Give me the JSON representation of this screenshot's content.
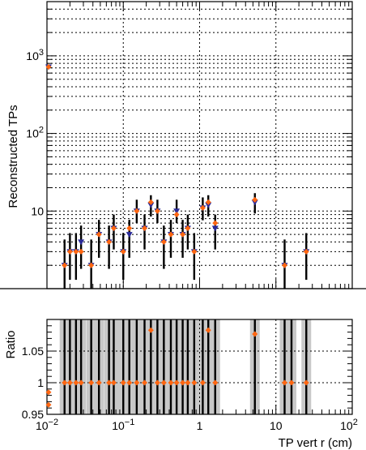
{
  "chart_data": [
    {
      "type": "scatter",
      "title": "",
      "xlabel": "TP vert r (cm)",
      "ylabel": "Reconstructed TPs",
      "x_scale": "log",
      "y_scale": "log",
      "xlim": [
        0.01,
        100
      ],
      "ylim": [
        1,
        5000
      ],
      "grid": true,
      "y_tick_labels": [
        "10",
        "10²",
        "10³"
      ],
      "series": [
        {
          "name": "",
          "color": "#2b2b99",
          "marker": "triangle-down",
          "points": [
            {
              "x": 0.0105,
              "y": 720,
              "lo": 690,
              "hi": 750
            },
            {
              "x": 0.017,
              "y": 2,
              "lo": 0.9,
              "hi": 4.3
            },
            {
              "x": 0.02,
              "y": 3,
              "lo": 1.3,
              "hi": 5.2
            },
            {
              "x": 0.024,
              "y": 3,
              "lo": 1.3,
              "hi": 5.2
            },
            {
              "x": 0.028,
              "y": 4,
              "lo": 1.8,
              "hi": 6.5
            },
            {
              "x": 0.038,
              "y": 2,
              "lo": 0.9,
              "hi": 4.3
            },
            {
              "x": 0.048,
              "y": 5,
              "lo": 2.5,
              "hi": 7.7
            },
            {
              "x": 0.065,
              "y": 4,
              "lo": 1.8,
              "hi": 6.5
            },
            {
              "x": 0.075,
              "y": 6,
              "lo": 3.2,
              "hi": 9.0
            },
            {
              "x": 0.1,
              "y": 3,
              "lo": 1.3,
              "hi": 5.2
            },
            {
              "x": 0.12,
              "y": 5,
              "lo": 2.5,
              "hi": 7.7
            },
            {
              "x": 0.15,
              "y": 10,
              "lo": 7.0,
              "hi": 14.0
            },
            {
              "x": 0.19,
              "y": 6,
              "lo": 3.2,
              "hi": 9.0
            },
            {
              "x": 0.23,
              "y": 12,
              "lo": 8.5,
              "hi": 16.0
            },
            {
              "x": 0.28,
              "y": 10,
              "lo": 7.0,
              "hi": 14.0
            },
            {
              "x": 0.34,
              "y": 4,
              "lo": 1.8,
              "hi": 6.5
            },
            {
              "x": 0.42,
              "y": 5,
              "lo": 2.5,
              "hi": 7.7
            },
            {
              "x": 0.5,
              "y": 10,
              "lo": 7.0,
              "hi": 14.0
            },
            {
              "x": 0.6,
              "y": 5,
              "lo": 2.5,
              "hi": 7.7
            },
            {
              "x": 0.7,
              "y": 6,
              "lo": 3.2,
              "hi": 9.0
            },
            {
              "x": 0.85,
              "y": 3,
              "lo": 1.3,
              "hi": 5.2
            },
            {
              "x": 1.1,
              "y": 11,
              "lo": 7.6,
              "hi": 15.0
            },
            {
              "x": 1.3,
              "y": 12,
              "lo": 8.5,
              "hi": 16.0
            },
            {
              "x": 1.6,
              "y": 6,
              "lo": 3.2,
              "hi": 9.0
            },
            {
              "x": 5.3,
              "y": 13,
              "lo": 9.3,
              "hi": 17.0
            },
            {
              "x": 13,
              "y": 2,
              "lo": 0.9,
              "hi": 4.3
            },
            {
              "x": 25,
              "y": 3,
              "lo": 1.3,
              "hi": 5.2
            }
          ]
        },
        {
          "name": "",
          "color": "#ff6611",
          "marker": "diamond",
          "points": [
            {
              "x": 0.0105,
              "y": 720
            },
            {
              "x": 0.017,
              "y": 2
            },
            {
              "x": 0.02,
              "y": 3
            },
            {
              "x": 0.024,
              "y": 3
            },
            {
              "x": 0.028,
              "y": 3
            },
            {
              "x": 0.038,
              "y": 2
            },
            {
              "x": 0.048,
              "y": 5
            },
            {
              "x": 0.065,
              "y": 4
            },
            {
              "x": 0.075,
              "y": 6
            },
            {
              "x": 0.1,
              "y": 3
            },
            {
              "x": 0.12,
              "y": 6
            },
            {
              "x": 0.15,
              "y": 10
            },
            {
              "x": 0.19,
              "y": 6
            },
            {
              "x": 0.23,
              "y": 13
            },
            {
              "x": 0.28,
              "y": 10
            },
            {
              "x": 0.34,
              "y": 4
            },
            {
              "x": 0.42,
              "y": 5
            },
            {
              "x": 0.5,
              "y": 9
            },
            {
              "x": 0.6,
              "y": 5
            },
            {
              "x": 0.7,
              "y": 6
            },
            {
              "x": 0.85,
              "y": 3
            },
            {
              "x": 1.1,
              "y": 11
            },
            {
              "x": 1.3,
              "y": 13
            },
            {
              "x": 1.6,
              "y": 7
            },
            {
              "x": 5.3,
              "y": 14
            },
            {
              "x": 13,
              "y": 2
            },
            {
              "x": 25,
              "y": 3
            }
          ]
        }
      ]
    },
    {
      "type": "scatter",
      "title": "",
      "xlabel": "TP vert r (cm)",
      "ylabel": "Ratio",
      "x_scale": "log",
      "y_scale": "linear",
      "xlim": [
        0.01,
        100
      ],
      "ylim": [
        0.95,
        1.1
      ],
      "grid": true,
      "x_tick_labels": [
        "10⁻²",
        "10⁻¹",
        "1",
        "10",
        "10²"
      ],
      "y_tick_labels": [
        "0.95",
        "1",
        "1.05"
      ],
      "series": [
        {
          "name": "",
          "color": "#ff6611",
          "marker": "diamond",
          "points": [
            {
              "x": 0.0105,
              "y": 0.965
            },
            {
              "x": 0.0105,
              "y": 0.985
            },
            {
              "x": 0.017,
              "y": 1.0
            },
            {
              "x": 0.02,
              "y": 1.0
            },
            {
              "x": 0.024,
              "y": 1.0
            },
            {
              "x": 0.028,
              "y": 1.0
            },
            {
              "x": 0.038,
              "y": 1.0
            },
            {
              "x": 0.048,
              "y": 1.0
            },
            {
              "x": 0.065,
              "y": 1.0
            },
            {
              "x": 0.075,
              "y": 1.0
            },
            {
              "x": 0.1,
              "y": 1.0
            },
            {
              "x": 0.12,
              "y": 1.0
            },
            {
              "x": 0.15,
              "y": 1.0
            },
            {
              "x": 0.19,
              "y": 1.0
            },
            {
              "x": 0.23,
              "y": 1.083
            },
            {
              "x": 0.28,
              "y": 1.0
            },
            {
              "x": 0.34,
              "y": 1.0
            },
            {
              "x": 0.42,
              "y": 1.0
            },
            {
              "x": 0.5,
              "y": 1.0
            },
            {
              "x": 0.6,
              "y": 1.0
            },
            {
              "x": 0.7,
              "y": 1.0
            },
            {
              "x": 0.85,
              "y": 1.0
            },
            {
              "x": 1.1,
              "y": 1.0
            },
            {
              "x": 1.3,
              "y": 1.083
            },
            {
              "x": 1.6,
              "y": 1.0
            },
            {
              "x": 5.3,
              "y": 1.077
            },
            {
              "x": 13,
              "y": 1.0
            },
            {
              "x": 16,
              "y": 1.0
            },
            {
              "x": 25,
              "y": 1.0
            }
          ]
        }
      ],
      "uncertainty_band_color": "#c8c8c8"
    }
  ]
}
